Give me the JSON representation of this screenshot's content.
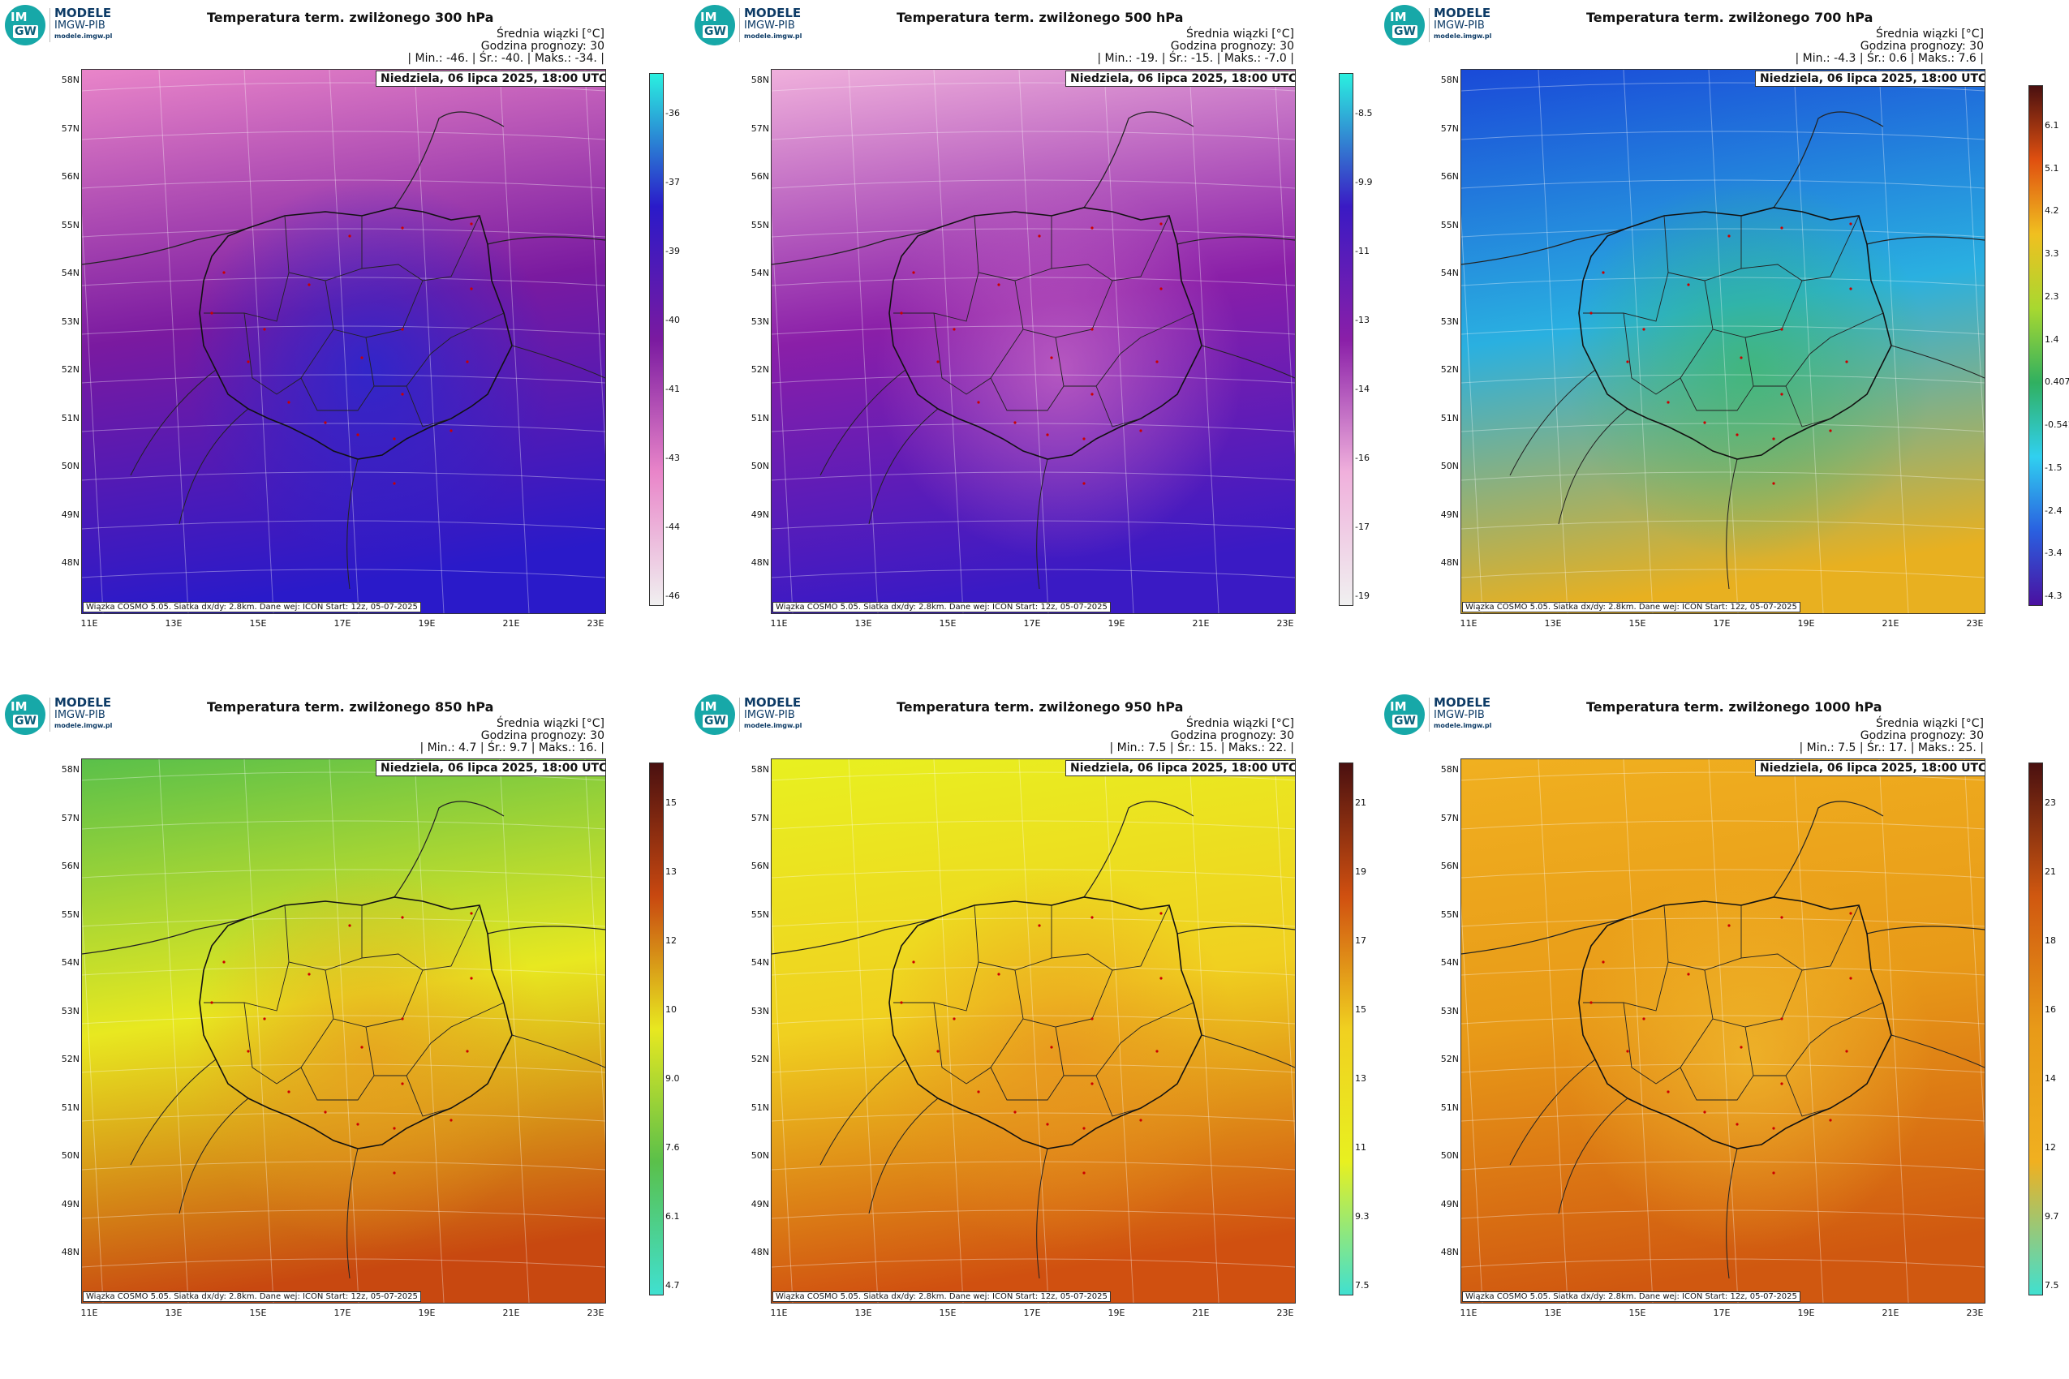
{
  "branding": {
    "badge_top": "IM",
    "badge_bottom": "GW",
    "title": "MODELE",
    "subtitle": "IMGW-PIB",
    "url": "modele.imgw.pl"
  },
  "common": {
    "stat_label": "Średnia wiązki [°C]",
    "forecast_hour": "Godzina prognozy: 30",
    "date_label": "Niedziela, 06 lipca 2025, 18:00 UTC",
    "footer": "Wiązka COSMO 5.05. Siatka dx/dy: 2.8km. Dane wej: ICON Start: 12z, 05-07-2025",
    "lat_labels": [
      "58N",
      "57N",
      "56N",
      "55N",
      "54N",
      "53N",
      "52N",
      "51N",
      "50N",
      "49N",
      "48N"
    ],
    "lon_labels": [
      "11E",
      "13E",
      "15E",
      "17E",
      "19E",
      "21E",
      "23E"
    ]
  },
  "panels": [
    {
      "title": "Temperatura term. zwilżonego 300 hPa",
      "stats": "| Min.:   -46. | Śr.:   -40. | Maks.:   -34. |",
      "colorbar_ticks": [
        "-36",
        "-37",
        "-39",
        "-40",
        "-41",
        "-43",
        "-44",
        "-46"
      ],
      "colors": {
        "north": "#e985c9",
        "mid": "#7a1aa0",
        "south": "#2a1ac9",
        "accent": "#1a2ad6"
      }
    },
    {
      "title": "Temperatura term. zwilżonego 500 hPa",
      "stats": "| Min.:   -19. | Śr.:   -15. | Maks.:   -7.0 |",
      "colorbar_ticks": [
        "-8.5",
        "-9.9",
        "-11",
        "-13",
        "-14",
        "-16",
        "-17",
        "-19"
      ],
      "colors": {
        "north": "#f0b0dc",
        "mid": "#8a1fa8",
        "south": "#3a1ac4",
        "accent": "#d070c8"
      }
    },
    {
      "title": "Temperatura term. zwilżonego 700 hPa",
      "stats": "| Min.:   -4.3 | Śr.:   0.6 | Maks.:   7.6 |",
      "colorbar_ticks": [
        "6.1",
        "5.1",
        "4.2",
        "3.3",
        "2.3",
        "1.4",
        "0.407",
        "-0.541",
        "-1.5",
        "-2.4",
        "-3.4",
        "-4.3"
      ],
      "colors": {
        "north": "#1a4ad8",
        "mid": "#2ab0e0",
        "south": "#e8b020",
        "accent": "#38b868"
      }
    },
    {
      "title": "Temperatura term. zwilżonego 850 hPa",
      "stats": "| Min.:   4.7 | Śr.:   9.7 | Maks.:   16. |",
      "colorbar_ticks": [
        "15",
        "13",
        "12",
        "10",
        "9.0",
        "7.6",
        "6.1",
        "4.7"
      ],
      "colors": {
        "north": "#5ac04a",
        "mid": "#e8e820",
        "south": "#c84810",
        "accent": "#e89a20"
      }
    },
    {
      "title": "Temperatura term. zwilżonego 950 hPa",
      "stats": "| Min.:   7.5 | Śr.:   15. | Maks.:   22. |",
      "colorbar_ticks": [
        "21",
        "19",
        "17",
        "15",
        "13",
        "11",
        "9.3",
        "7.5"
      ],
      "colors": {
        "north": "#e8f020",
        "mid": "#f0d020",
        "south": "#d05010",
        "accent": "#e89020"
      }
    },
    {
      "title": "Temperatura term. zwilżonego 1000 hPa",
      "stats": "| Min.:   7.5 | Śr.:   17. | Maks.:   25. |",
      "colorbar_ticks": [
        "23",
        "21",
        "18",
        "16",
        "14",
        "12",
        "9.7",
        "7.5"
      ],
      "colors": {
        "north": "#f0b020",
        "mid": "#e89a18",
        "south": "#d05810",
        "accent": "#f2c030"
      }
    }
  ]
}
